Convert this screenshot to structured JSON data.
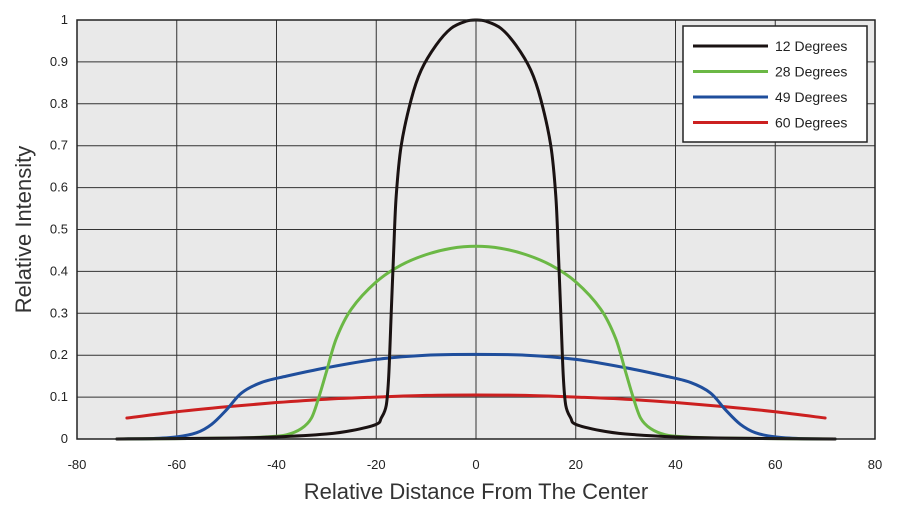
{
  "chart_data": {
    "type": "line",
    "title": "",
    "xlabel": "Relative Distance From The Center",
    "ylabel": "Relative Intensity",
    "xlim": [
      -80,
      80
    ],
    "ylim": [
      0,
      1
    ],
    "x_ticks": [
      -80,
      -60,
      -40,
      -20,
      0,
      20,
      40,
      60,
      80
    ],
    "y_ticks": [
      0,
      0.1,
      0.2,
      0.3,
      0.4,
      0.5,
      0.6,
      0.7,
      0.8,
      0.9,
      1
    ],
    "grid": true,
    "legend_position": "top-right",
    "background": "#e9e9e9",
    "series": [
      {
        "name": "12 Degrees",
        "color": "#1a1212",
        "points": [
          [
            -72,
            0
          ],
          [
            -50,
            0.002
          ],
          [
            -40,
            0.005
          ],
          [
            -30,
            0.012
          ],
          [
            -25,
            0.02
          ],
          [
            -20,
            0.035
          ],
          [
            -19,
            0.05
          ],
          [
            -18,
            0.08
          ],
          [
            -17.5,
            0.15
          ],
          [
            -17,
            0.3
          ],
          [
            -16.5,
            0.45
          ],
          [
            -16,
            0.58
          ],
          [
            -15,
            0.7
          ],
          [
            -13,
            0.81
          ],
          [
            -11,
            0.88
          ],
          [
            -8,
            0.94
          ],
          [
            -5,
            0.98
          ],
          [
            -2,
            0.997
          ],
          [
            0,
            1
          ],
          [
            2,
            0.997
          ],
          [
            5,
            0.98
          ],
          [
            8,
            0.94
          ],
          [
            11,
            0.88
          ],
          [
            13,
            0.81
          ],
          [
            15,
            0.7
          ],
          [
            16,
            0.58
          ],
          [
            16.5,
            0.45
          ],
          [
            17,
            0.3
          ],
          [
            17.5,
            0.15
          ],
          [
            18,
            0.08
          ],
          [
            19,
            0.05
          ],
          [
            20,
            0.035
          ],
          [
            25,
            0.02
          ],
          [
            30,
            0.012
          ],
          [
            40,
            0.005
          ],
          [
            50,
            0.002
          ],
          [
            72,
            0
          ]
        ]
      },
      {
        "name": "28 Degrees",
        "color": "#6bb845",
        "points": [
          [
            -72,
            0
          ],
          [
            -50,
            0.002
          ],
          [
            -42,
            0.005
          ],
          [
            -38,
            0.01
          ],
          [
            -35,
            0.025
          ],
          [
            -33,
            0.05
          ],
          [
            -31.5,
            0.1
          ],
          [
            -30,
            0.16
          ],
          [
            -28,
            0.24
          ],
          [
            -25,
            0.31
          ],
          [
            -20,
            0.375
          ],
          [
            -15,
            0.415
          ],
          [
            -10,
            0.44
          ],
          [
            -5,
            0.455
          ],
          [
            0,
            0.46
          ],
          [
            5,
            0.455
          ],
          [
            10,
            0.44
          ],
          [
            15,
            0.415
          ],
          [
            20,
            0.375
          ],
          [
            25,
            0.31
          ],
          [
            28,
            0.24
          ],
          [
            30,
            0.16
          ],
          [
            31.5,
            0.1
          ],
          [
            33,
            0.05
          ],
          [
            35,
            0.025
          ],
          [
            38,
            0.01
          ],
          [
            42,
            0.005
          ],
          [
            50,
            0.002
          ],
          [
            72,
            0
          ]
        ]
      },
      {
        "name": "49 Degrees",
        "color": "#1f4e9c",
        "points": [
          [
            -72,
            0
          ],
          [
            -65,
            0.001
          ],
          [
            -60,
            0.005
          ],
          [
            -56,
            0.015
          ],
          [
            -53,
            0.035
          ],
          [
            -50,
            0.07
          ],
          [
            -47,
            0.11
          ],
          [
            -43,
            0.135
          ],
          [
            -38,
            0.15
          ],
          [
            -30,
            0.17
          ],
          [
            -20,
            0.19
          ],
          [
            -10,
            0.2
          ],
          [
            0,
            0.202
          ],
          [
            10,
            0.2
          ],
          [
            20,
            0.19
          ],
          [
            30,
            0.17
          ],
          [
            38,
            0.15
          ],
          [
            43,
            0.135
          ],
          [
            47,
            0.11
          ],
          [
            50,
            0.07
          ],
          [
            53,
            0.035
          ],
          [
            56,
            0.015
          ],
          [
            60,
            0.005
          ],
          [
            65,
            0.001
          ],
          [
            72,
            0
          ]
        ]
      },
      {
        "name": "60 Degrees",
        "color": "#cc2020",
        "points": [
          [
            -70,
            0.05
          ],
          [
            -60,
            0.065
          ],
          [
            -50,
            0.077
          ],
          [
            -40,
            0.087
          ],
          [
            -30,
            0.095
          ],
          [
            -20,
            0.1
          ],
          [
            -10,
            0.104
          ],
          [
            0,
            0.105
          ],
          [
            10,
            0.104
          ],
          [
            20,
            0.1
          ],
          [
            30,
            0.095
          ],
          [
            40,
            0.087
          ],
          [
            50,
            0.077
          ],
          [
            60,
            0.065
          ],
          [
            70,
            0.05
          ]
        ]
      }
    ]
  }
}
